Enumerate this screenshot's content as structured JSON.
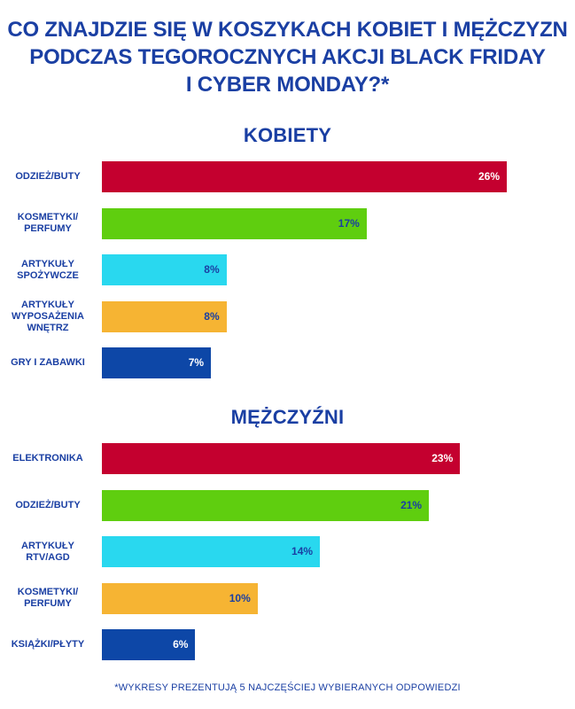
{
  "title_lines": [
    "CO ZNAJDZIE SIĘ W KOSZYKACH KOBIET I MĘŻCZYZN",
    "PODCZAS TEGOROCZNYCH AKCJI BLACK FRIDAY",
    "I CYBER MONDAY?*"
  ],
  "footnote": "*WYKRESY PREZENTUJĄ 5 NAJCZĘŚCIEJ WYBIERANYCH ODPOWIEDZI",
  "colors": {
    "title": "#1a3fa3",
    "palette": [
      "#c4002f",
      "#5fce0f",
      "#29d8ef",
      "#f6b433",
      "#0d47a7"
    ],
    "value_text_light": "#ffffff",
    "value_text_dark": "#1a3fa3"
  },
  "chart_data": [
    {
      "type": "bar",
      "orientation": "horizontal",
      "title": "KOBIETY",
      "categories": [
        "ODZIEŻ/BUTY",
        "KOSMETYKI/\nPERFUMY",
        "ARTYKUŁY\nSPOŻYWCZE",
        "ARTYKUŁY\nWYPOSAŻENIA\nWNĘTRZ",
        "GRY I ZABAWKI"
      ],
      "values": [
        26,
        17,
        8,
        8,
        7
      ],
      "value_labels": [
        "26%",
        "17%",
        "8%",
        "8%",
        "7%"
      ],
      "grid": false,
      "legend": "none"
    },
    {
      "type": "bar",
      "orientation": "horizontal",
      "title": "MĘŻCZYŹNI",
      "categories": [
        "ELEKTRONIKA",
        "ODZIEŻ/BUTY",
        "ARTYKUŁY\nRTV/AGD",
        "KOSMETYKI/\nPERFUMY",
        "KSIĄŻKI/PŁYTY"
      ],
      "values": [
        23,
        21,
        14,
        10,
        6
      ],
      "value_labels": [
        "23%",
        "21%",
        "14%",
        "10%",
        "6%"
      ],
      "grid": false,
      "legend": "none"
    }
  ]
}
